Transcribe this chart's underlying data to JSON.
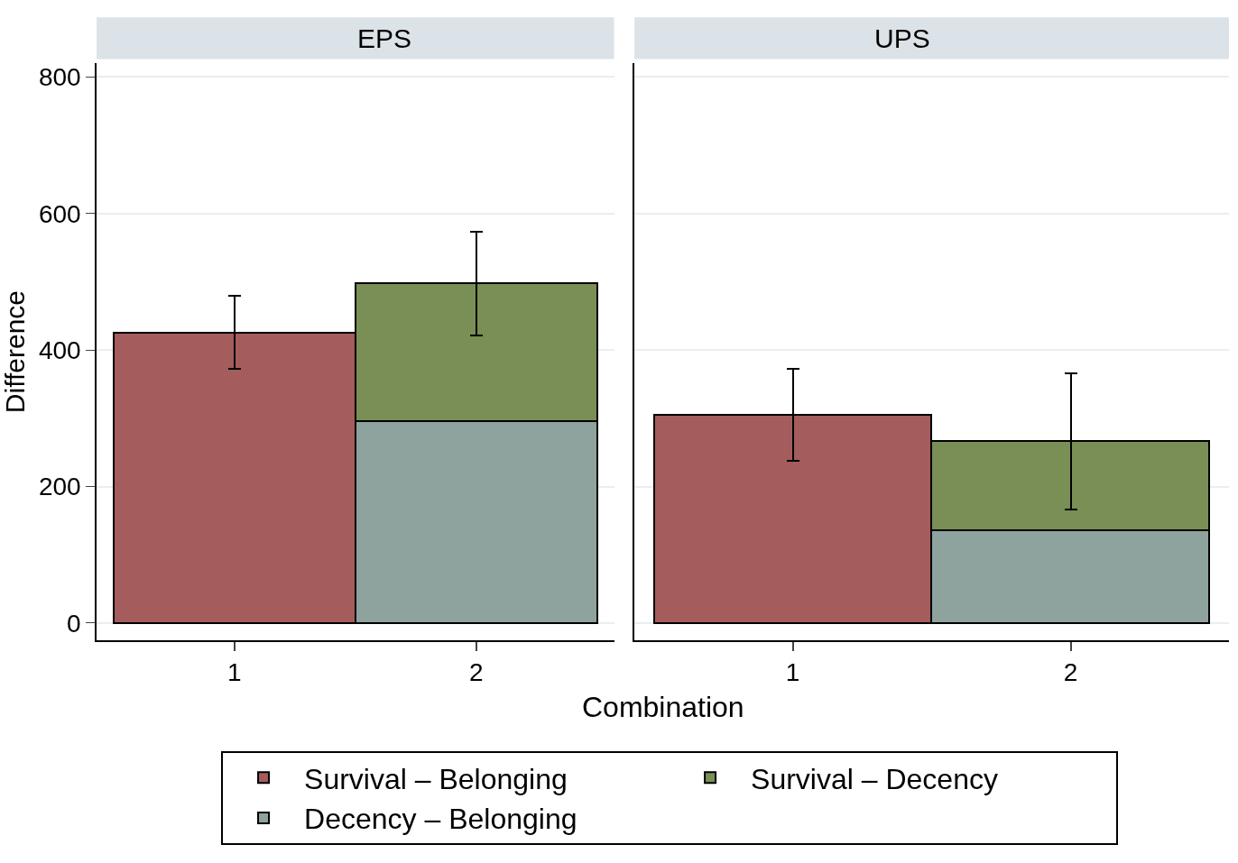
{
  "chart_data": [
    {
      "type": "bar",
      "title": "EPS",
      "xlabel": "Combination",
      "ylabel": "Difference",
      "categories": [
        "1",
        "2"
      ],
      "stacked": true,
      "ylim": [
        -25,
        820
      ],
      "yticks": [
        0,
        200,
        400,
        600,
        800
      ],
      "grid": "y",
      "legend": "bottom",
      "series": [
        {
          "name": "Survival – Belonging",
          "color": "#a45c5c",
          "values": [
            425,
            null
          ],
          "errors": [
            [
              372,
              480
            ],
            null
          ]
        },
        {
          "name": "Decency – Belonging",
          "color": "#8fa39e",
          "values": [
            null,
            295
          ],
          "errors": [
            null,
            null
          ]
        },
        {
          "name": "Survival – Decency",
          "color": "#7a8f55",
          "values": [
            null,
            203
          ],
          "errors": [
            null,
            [
              422,
              573
            ]
          ]
        }
      ]
    },
    {
      "type": "bar",
      "title": "UPS",
      "categories": [
        "1",
        "2"
      ],
      "stacked": true,
      "ylim": [
        -25,
        820
      ],
      "yticks": [
        0,
        200,
        400,
        600,
        800
      ],
      "grid": "y",
      "tick_labels": "x",
      "series": [
        {
          "name": "Survival – Belonging",
          "color": "#a45c5c",
          "values": [
            305,
            null
          ],
          "errors": [
            [
              238,
              373
            ],
            null
          ]
        },
        {
          "name": "Decency – Belonging",
          "color": "#8fa39e",
          "values": [
            null,
            136
          ],
          "errors": [
            null,
            null
          ]
        },
        {
          "name": "Survival – Decency",
          "color": "#7a8f55",
          "values": [
            null,
            130
          ],
          "errors": [
            null,
            [
              166,
              366
            ]
          ]
        }
      ]
    }
  ]
}
